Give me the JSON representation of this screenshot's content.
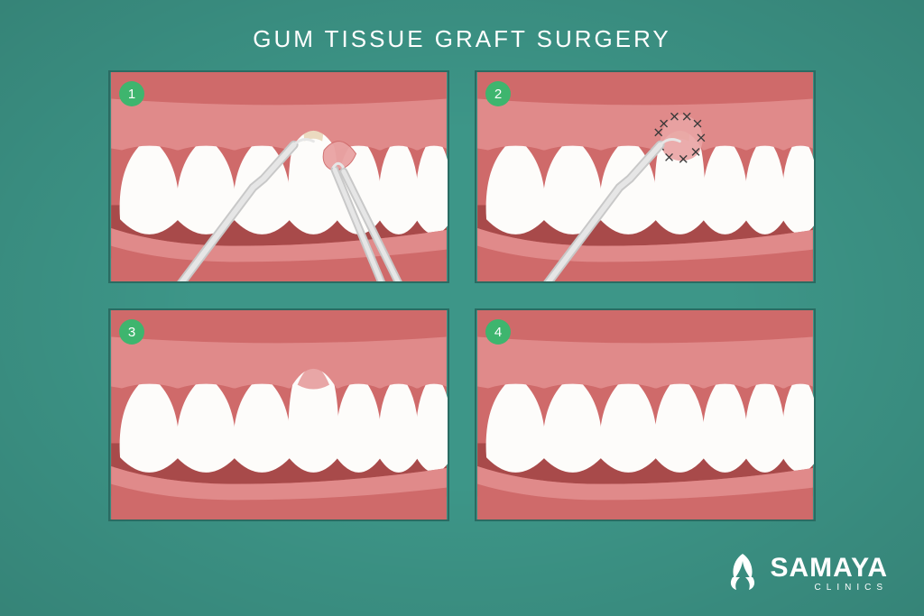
{
  "title": "GUM TISSUE GRAFT SURGERY",
  "background_color": "#3d9688",
  "panel_border_color": "#2a6b62",
  "panel_border_width": 2,
  "step_badge": {
    "bg": "#3eb56e",
    "text_color": "#ffffff"
  },
  "colors": {
    "gum_light": "#e08a8a",
    "gum_dark": "#cf6a6a",
    "gum_recess_tip": "#e8d4b5",
    "mouth_dark": "#a84a4a",
    "tooth": "#fdfcfa",
    "instrument": "#e6e6e6",
    "instrument_edge": "#c8c8c8",
    "graft_tissue": "#e9a3a3",
    "suture": "#3a3a3a"
  },
  "panels": [
    {
      "step": "1",
      "type": "graft-placement",
      "show_recession": true,
      "show_instrument": true,
      "show_tweezers": true,
      "show_graft_loose": true,
      "show_sutures": false,
      "show_healed_overlay": false
    },
    {
      "step": "2",
      "type": "suturing",
      "show_recession": true,
      "show_instrument": true,
      "show_tweezers": false,
      "show_graft_loose": false,
      "show_sutures": true,
      "show_healed_overlay": false
    },
    {
      "step": "3",
      "type": "healing",
      "show_recession": true,
      "show_instrument": false,
      "show_tweezers": false,
      "show_graft_loose": false,
      "show_sutures": false,
      "show_healed_overlay": true
    },
    {
      "step": "4",
      "type": "healed",
      "show_recession": false,
      "show_instrument": false,
      "show_tweezers": false,
      "show_graft_loose": false,
      "show_sutures": false,
      "show_healed_overlay": false
    }
  ],
  "teeth_geometry": {
    "count": 7,
    "recessed_index": 3
  },
  "logo": {
    "brand": "SAMAYA",
    "sub": "CLINICS",
    "color": "#ffffff"
  }
}
